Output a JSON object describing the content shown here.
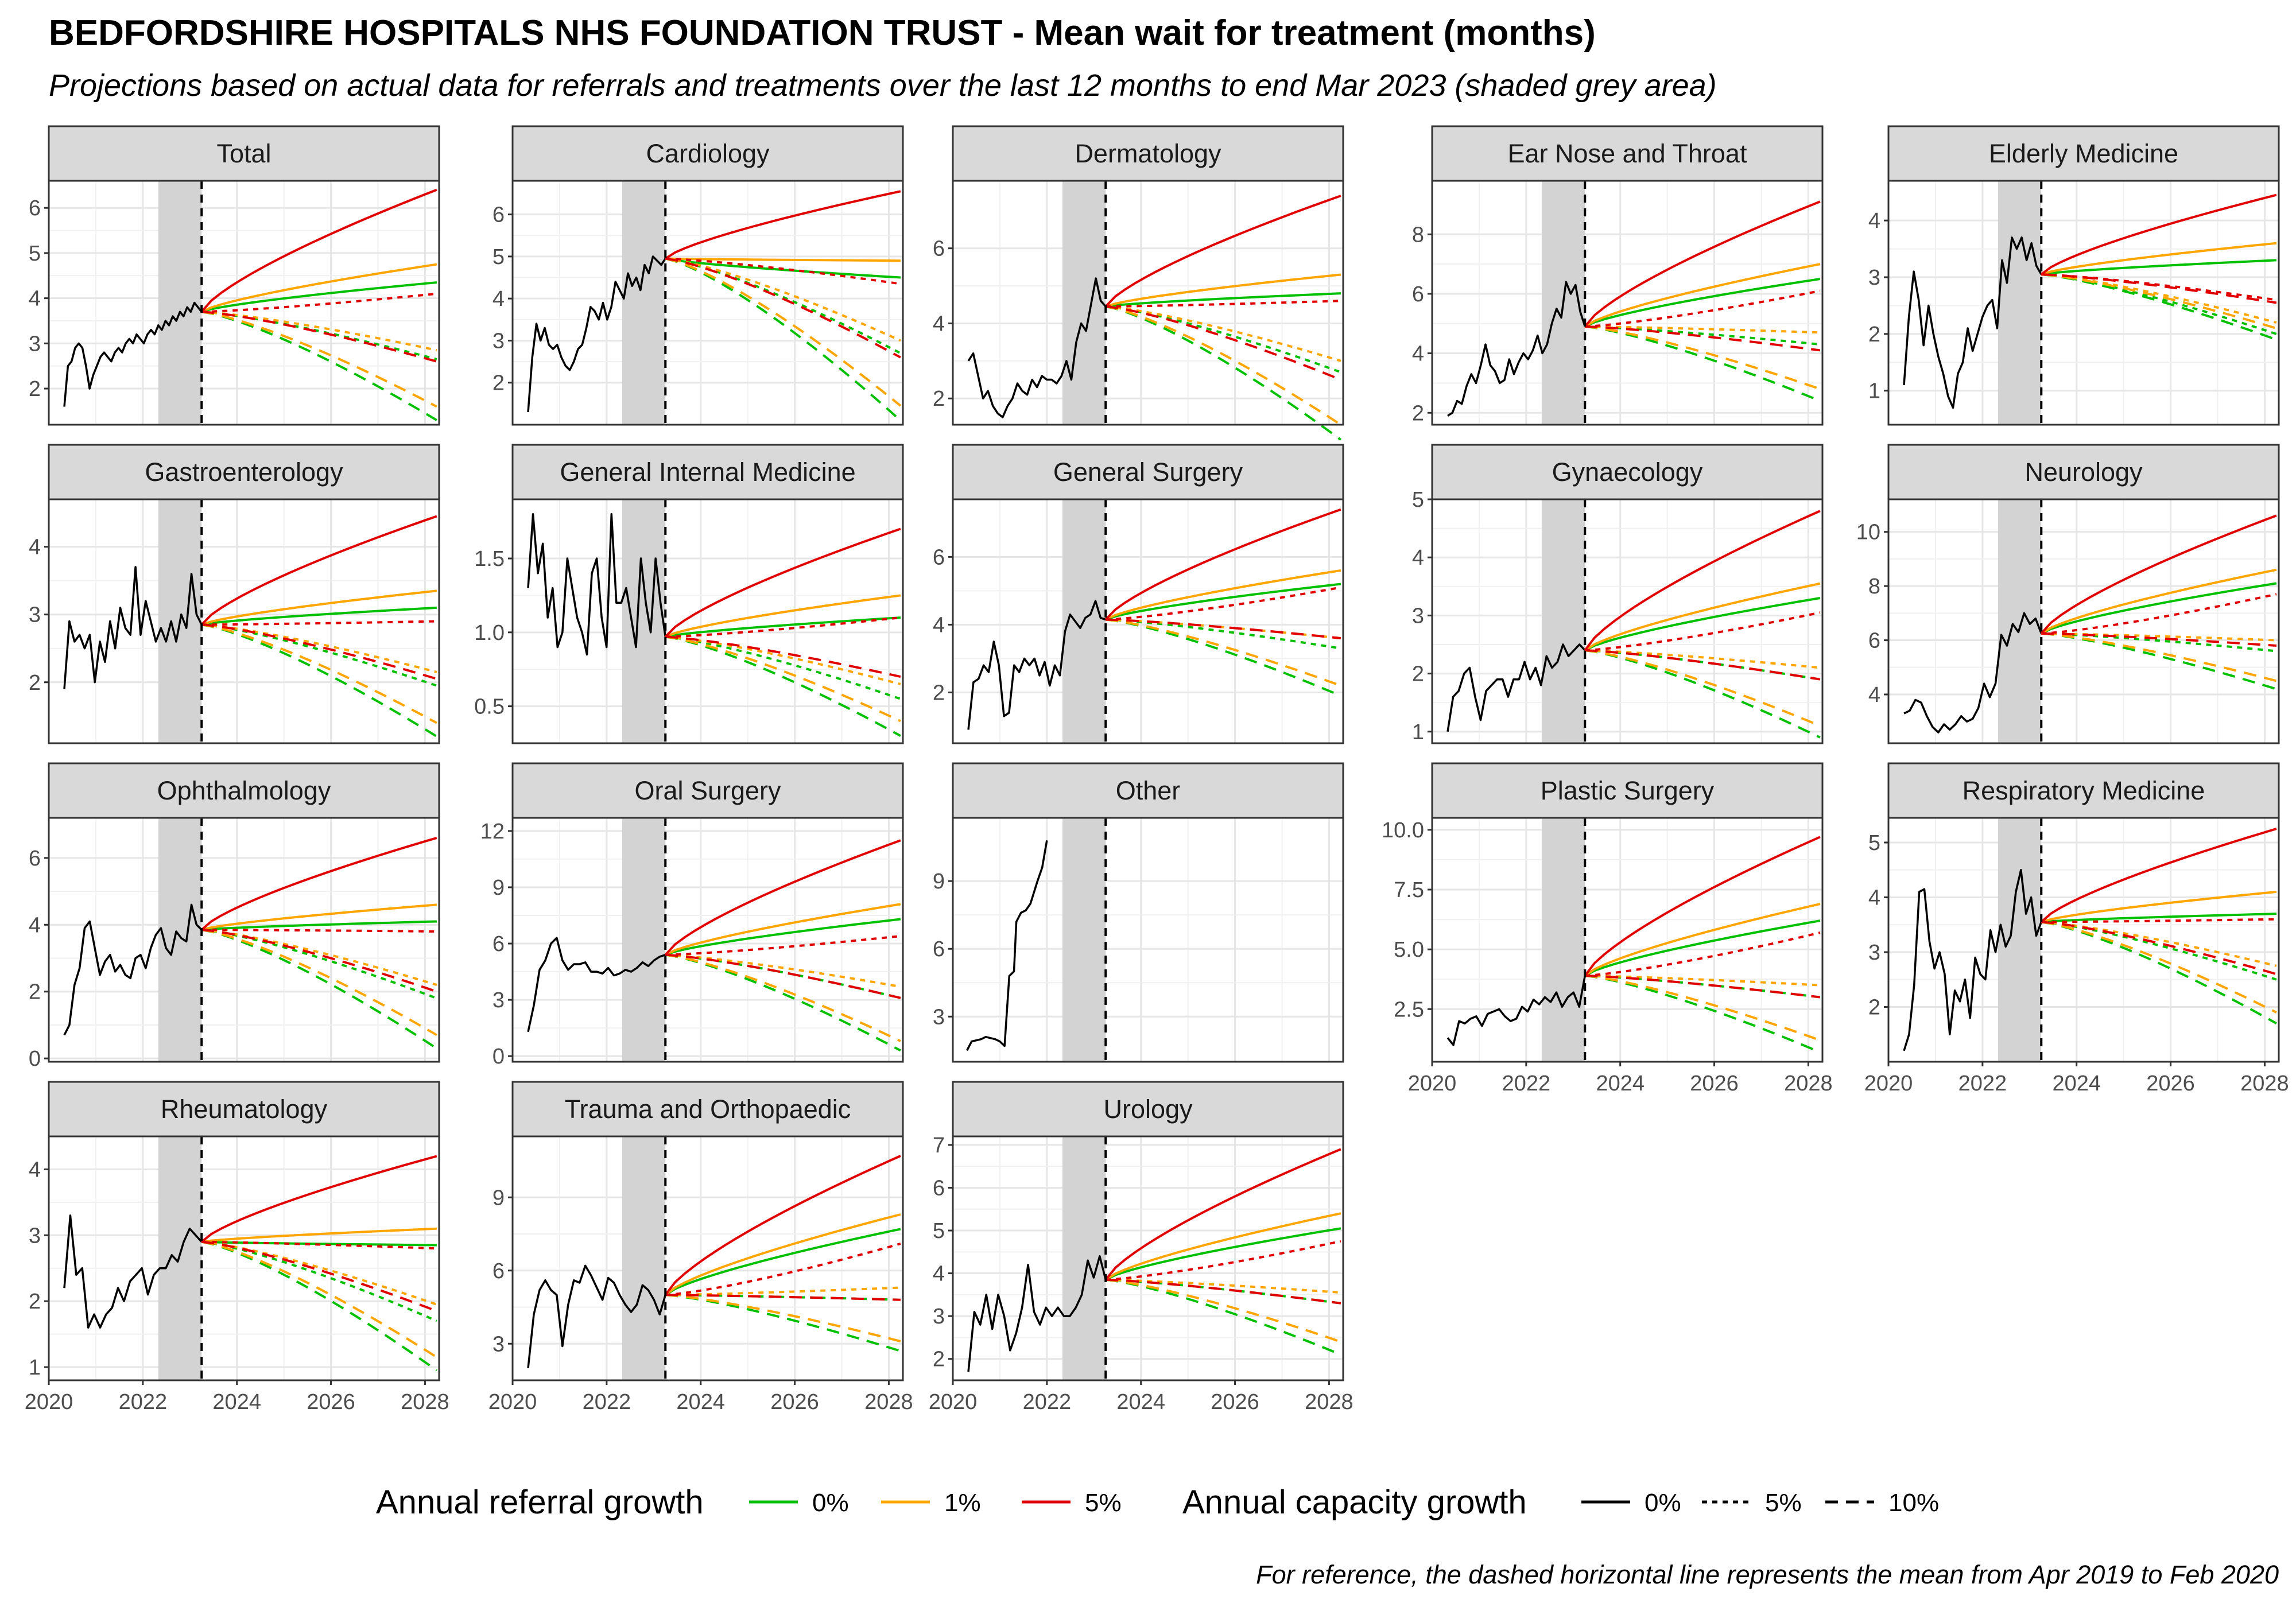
{
  "title": "BEDFORDSHIRE HOSPITALS NHS FOUNDATION TRUST - Mean wait for treatment (months)",
  "subtitle": "Projections based on actual data for referrals and treatments over the last 12 months to end Mar 2023 (shaded grey area)",
  "caption": "For reference, the dashed horizontal line represents the mean from Apr 2019 to Feb 2020",
  "legend": {
    "referral": {
      "title": "Annual referral growth",
      "items": [
        {
          "label": "0%",
          "color": "#00c000"
        },
        {
          "label": "1%",
          "color": "#ffa500"
        },
        {
          "label": "5%",
          "color": "#e00000"
        }
      ]
    },
    "capacity": {
      "title": "Annual capacity growth",
      "items": [
        {
          "label": "0%",
          "linetype": "solid"
        },
        {
          "label": "5%",
          "linetype": "dotted"
        },
        {
          "label": "10%",
          "linetype": "dashed"
        }
      ]
    }
  },
  "chart_data": {
    "type": "line",
    "facet_layout": "5 columns, free y-scales, shared x-axis",
    "x_axis": {
      "range": [
        2020.0,
        2028.3
      ],
      "ticks": [
        2020,
        2022,
        2024,
        2026,
        2028
      ]
    },
    "shaded_period": [
      2022.33,
      2023.25
    ],
    "projection_start": 2023.25,
    "projection_end": 2028.25,
    "series_key": "projections keyed [referral growth][capacity growth] = end value at 2028.25",
    "panels": [
      {
        "name": "Total",
        "ylim": [
          1.2,
          6.6
        ],
        "yticks": [
          2,
          3,
          4,
          5,
          6
        ],
        "start": 3.7,
        "hist": [
          1.6,
          2.5,
          2.6,
          2.9,
          3.0,
          2.9,
          2.5,
          2.0,
          2.3,
          2.5,
          2.7,
          2.8,
          2.7,
          2.6,
          2.8,
          2.9,
          2.8,
          3.0,
          3.1,
          3.0,
          3.2,
          3.1,
          3.0,
          3.2,
          3.3,
          3.2,
          3.4,
          3.3,
          3.5,
          3.4,
          3.6,
          3.5,
          3.7,
          3.6,
          3.8,
          3.7,
          3.9,
          3.8,
          3.7
        ],
        "proj": {
          "0%": [
            4.35,
            2.65,
            1.3
          ],
          "1%": [
            4.75,
            2.85,
            1.6
          ],
          "5%": [
            6.4,
            4.1,
            2.6
          ]
        }
      },
      {
        "name": "Cardiology",
        "ylim": [
          1.0,
          6.8
        ],
        "yticks": [
          2,
          3,
          4,
          5,
          6
        ],
        "start": 4.95,
        "hist": [
          1.3,
          2.6,
          3.4,
          3.0,
          3.3,
          2.9,
          2.8,
          2.9,
          2.6,
          2.4,
          2.3,
          2.5,
          2.8,
          2.9,
          3.3,
          3.8,
          3.7,
          3.5,
          3.9,
          3.5,
          3.8,
          4.4,
          4.2,
          4.0,
          4.6,
          4.3,
          4.5,
          4.2,
          4.8,
          4.6,
          5.0,
          4.9,
          4.8,
          4.95
        ],
        "proj": {
          "0%": [
            4.5,
            2.7,
            1.1
          ],
          "1%": [
            4.9,
            3.0,
            1.45
          ],
          "5%": [
            6.55,
            4.35,
            2.6
          ]
        }
      },
      {
        "name": "Dermatology",
        "ylim": [
          1.3,
          7.8
        ],
        "yticks": [
          2,
          4,
          6
        ],
        "start": 4.45,
        "hist": [
          3.0,
          3.2,
          2.6,
          2.0,
          2.2,
          1.8,
          1.6,
          1.5,
          1.8,
          2.0,
          2.4,
          2.2,
          2.1,
          2.5,
          2.3,
          2.6,
          2.5,
          2.5,
          2.4,
          2.6,
          3.0,
          2.5,
          3.5,
          4.0,
          3.8,
          4.5,
          5.2,
          4.6,
          4.45
        ],
        "proj": {
          "0%": [
            4.8,
            2.7,
            0.9
          ],
          "1%": [
            5.3,
            3.0,
            1.3
          ],
          "5%": [
            7.4,
            4.6,
            2.5
          ]
        }
      },
      {
        "name": "Ear Nose and Throat",
        "ylim": [
          1.6,
          9.8
        ],
        "yticks": [
          2,
          4,
          6,
          8
        ],
        "start": 4.9,
        "hist": [
          1.9,
          2.0,
          2.4,
          2.3,
          2.9,
          3.3,
          3.0,
          3.6,
          4.3,
          3.6,
          3.4,
          3.0,
          3.1,
          3.8,
          3.3,
          3.7,
          4.0,
          3.8,
          4.1,
          4.6,
          4.0,
          4.3,
          5.0,
          5.5,
          5.2,
          6.4,
          6.0,
          6.3,
          5.4,
          4.9
        ],
        "proj": {
          "0%": [
            6.5,
            4.3,
            2.4
          ],
          "1%": [
            7.0,
            4.7,
            2.8
          ],
          "5%": [
            9.1,
            6.1,
            4.1
          ]
        }
      },
      {
        "name": "Elderly Medicine",
        "ylim": [
          0.4,
          4.7
        ],
        "yticks": [
          1,
          2,
          3,
          4
        ],
        "start": 3.05,
        "hist": [
          1.1,
          2.3,
          3.1,
          2.6,
          1.8,
          2.5,
          2.0,
          1.6,
          1.3,
          0.9,
          0.7,
          1.3,
          1.5,
          2.1,
          1.7,
          2.0,
          2.3,
          2.5,
          2.6,
          2.1,
          3.3,
          2.9,
          3.7,
          3.5,
          3.7,
          3.3,
          3.6,
          3.2,
          3.05
        ],
        "proj": {
          "0%": [
            3.3,
            2.0,
            1.9
          ],
          "1%": [
            3.6,
            2.2,
            2.1
          ],
          "5%": [
            4.45,
            2.6,
            2.55
          ]
        }
      },
      {
        "name": "Gastroenterology",
        "ylim": [
          1.1,
          4.7
        ],
        "yticks": [
          2,
          3,
          4
        ],
        "start": 2.85,
        "hist": [
          1.9,
          2.9,
          2.6,
          2.7,
          2.5,
          2.7,
          2.0,
          2.6,
          2.3,
          2.9,
          2.5,
          3.1,
          2.8,
          2.7,
          3.7,
          2.7,
          3.2,
          2.9,
          2.6,
          2.8,
          2.6,
          2.9,
          2.6,
          3.0,
          2.8,
          3.6,
          3.0,
          2.85
        ],
        "proj": {
          "0%": [
            3.1,
            1.95,
            1.2
          ],
          "1%": [
            3.35,
            2.15,
            1.4
          ],
          "5%": [
            4.45,
            2.9,
            2.05
          ]
        }
      },
      {
        "name": "General Internal Medicine",
        "ylim": [
          0.25,
          1.9
        ],
        "yticks": [
          0.5,
          1.0,
          1.5
        ],
        "start": 0.97,
        "hist": [
          1.3,
          1.8,
          1.4,
          1.6,
          1.1,
          1.3,
          0.9,
          1.0,
          1.5,
          1.3,
          1.1,
          1.0,
          0.85,
          1.4,
          1.5,
          1.1,
          0.9,
          1.8,
          1.2,
          1.2,
          1.3,
          1.1,
          0.9,
          1.5,
          1.2,
          1.0,
          1.5,
          1.2,
          0.97
        ],
        "proj": {
          "0%": [
            1.1,
            0.55,
            0.3
          ],
          "1%": [
            1.25,
            0.65,
            0.4
          ],
          "5%": [
            1.7,
            1.1,
            0.7
          ]
        }
      },
      {
        "name": "General Surgery",
        "ylim": [
          0.5,
          7.7
        ],
        "yticks": [
          2,
          4,
          6
        ],
        "start": 4.15,
        "hist": [
          0.9,
          2.3,
          2.4,
          2.8,
          2.6,
          3.5,
          2.8,
          1.3,
          1.4,
          2.8,
          2.6,
          3.0,
          2.8,
          3.0,
          2.5,
          2.9,
          2.2,
          2.8,
          2.5,
          3.8,
          4.3,
          4.1,
          3.9,
          4.2,
          4.3,
          4.7,
          4.2,
          4.15
        ],
        "proj": {
          "0%": [
            5.2,
            3.3,
            1.9
          ],
          "1%": [
            5.6,
            3.6,
            2.2
          ],
          "5%": [
            7.4,
            5.1,
            3.6
          ]
        }
      },
      {
        "name": "Gynaecology",
        "ylim": [
          0.8,
          5.0
        ],
        "yticks": [
          1,
          2,
          3,
          4,
          5
        ],
        "start": 2.4,
        "hist": [
          1.0,
          1.6,
          1.7,
          2.0,
          2.1,
          1.6,
          1.2,
          1.7,
          1.8,
          1.9,
          1.9,
          1.6,
          1.9,
          1.9,
          2.2,
          1.9,
          2.1,
          1.8,
          2.3,
          2.1,
          2.2,
          2.5,
          2.3,
          2.4,
          2.5,
          2.4
        ],
        "proj": {
          "0%": [
            3.3,
            1.9,
            0.9
          ],
          "1%": [
            3.55,
            2.1,
            1.1
          ],
          "5%": [
            4.8,
            3.05,
            1.9
          ]
        }
      },
      {
        "name": "Neurology",
        "ylim": [
          2.2,
          11.2
        ],
        "yticks": [
          4,
          6,
          8,
          10
        ],
        "start": 6.25,
        "hist": [
          3.3,
          3.4,
          3.8,
          3.7,
          3.2,
          2.8,
          2.6,
          2.9,
          2.7,
          2.9,
          3.2,
          3.0,
          3.1,
          3.5,
          4.4,
          3.9,
          4.4,
          6.2,
          5.8,
          6.6,
          6.3,
          7.0,
          6.6,
          6.8,
          6.25
        ],
        "proj": {
          "0%": [
            8.1,
            5.6,
            4.2
          ],
          "1%": [
            8.6,
            6.0,
            4.5
          ],
          "5%": [
            10.6,
            7.7,
            5.8
          ]
        }
      },
      {
        "name": "Ophthalmology",
        "ylim": [
          -0.1,
          7.2
        ],
        "yticks": [
          0,
          2,
          4,
          6
        ],
        "start": 3.85,
        "hist": [
          0.7,
          1.0,
          2.2,
          2.7,
          3.9,
          4.1,
          3.3,
          2.5,
          2.9,
          3.1,
          2.6,
          2.8,
          2.5,
          2.4,
          3.0,
          3.1,
          2.7,
          3.3,
          3.7,
          3.9,
          3.3,
          3.1,
          3.8,
          3.6,
          3.5,
          4.6,
          4.0,
          3.85
        ],
        "proj": {
          "0%": [
            4.1,
            1.8,
            0.3
          ],
          "1%": [
            4.6,
            2.2,
            0.7
          ],
          "5%": [
            6.6,
            3.8,
            2.0
          ]
        }
      },
      {
        "name": "Oral Surgery",
        "ylim": [
          -0.3,
          12.7
        ],
        "yticks": [
          0,
          3,
          6,
          9,
          12
        ],
        "start": 5.4,
        "hist": [
          1.3,
          2.7,
          4.6,
          5.1,
          6.0,
          6.3,
          5.1,
          4.6,
          4.9,
          4.9,
          5.0,
          4.5,
          4.5,
          4.4,
          4.7,
          4.3,
          4.4,
          4.6,
          4.5,
          4.7,
          5.0,
          4.8,
          5.1,
          5.3,
          5.4
        ],
        "proj": {
          "0%": [
            7.3,
            3.1,
            0.3
          ],
          "1%": [
            8.1,
            3.7,
            0.8
          ],
          "5%": [
            11.5,
            6.4,
            3.1
          ]
        }
      },
      {
        "name": "Other",
        "ylim": [
          1.0,
          11.8
        ],
        "yticks": [
          3,
          6,
          9
        ],
        "start": null,
        "hist_points": [
          [
            2020.3,
            1.5
          ],
          [
            2020.4,
            1.9
          ],
          [
            2020.6,
            2.0
          ],
          [
            2020.7,
            2.1
          ],
          [
            2020.9,
            2.0
          ],
          [
            2021.0,
            1.9
          ],
          [
            2021.1,
            1.7
          ],
          [
            2021.2,
            4.8
          ],
          [
            2021.3,
            5.0
          ],
          [
            2021.35,
            7.2
          ],
          [
            2021.45,
            7.6
          ],
          [
            2021.55,
            7.7
          ],
          [
            2021.65,
            8.0
          ],
          [
            2021.8,
            9.0
          ],
          [
            2021.9,
            9.6
          ],
          [
            2022.0,
            10.8
          ]
        ],
        "hist": [],
        "proj": null
      },
      {
        "name": "Plastic Surgery",
        "ylim": [
          0.3,
          10.5
        ],
        "yticks": [
          2.5,
          5.0,
          7.5,
          10.0
        ],
        "start": 3.9,
        "hist": [
          1.3,
          1.0,
          2.0,
          1.9,
          2.1,
          2.2,
          1.8,
          2.3,
          2.4,
          2.5,
          2.2,
          2.0,
          2.1,
          2.6,
          2.4,
          2.9,
          2.7,
          3.0,
          2.8,
          3.2,
          2.6,
          3.0,
          3.2,
          2.6,
          3.9
        ],
        "proj": {
          "0%": [
            6.2,
            3.0,
            0.7
          ],
          "1%": [
            6.9,
            3.5,
            1.2
          ],
          "5%": [
            9.7,
            5.7,
            3.0
          ]
        }
      },
      {
        "name": "Respiratory Medicine",
        "ylim": [
          1.0,
          5.45
        ],
        "yticks": [
          2,
          3,
          4,
          5
        ],
        "start": 3.55,
        "hist": [
          1.2,
          1.5,
          2.4,
          4.1,
          4.15,
          3.2,
          2.7,
          3.0,
          2.6,
          1.5,
          2.3,
          2.1,
          2.5,
          1.8,
          2.9,
          2.6,
          2.5,
          3.4,
          3.0,
          3.5,
          3.1,
          3.3,
          4.1,
          4.5,
          3.7,
          4.0,
          3.3,
          3.55
        ],
        "proj": {
          "0%": [
            3.7,
            2.5,
            1.7
          ],
          "1%": [
            4.1,
            2.75,
            1.9
          ],
          "5%": [
            5.25,
            3.6,
            2.6
          ]
        }
      },
      {
        "name": "Rheumatology",
        "ylim": [
          0.8,
          4.5
        ],
        "yticks": [
          1,
          2,
          3,
          4
        ],
        "start": 2.9,
        "hist": [
          2.2,
          3.3,
          2.4,
          2.5,
          1.6,
          1.8,
          1.6,
          1.8,
          1.9,
          2.2,
          2.0,
          2.3,
          2.4,
          2.5,
          2.1,
          2.4,
          2.5,
          2.5,
          2.7,
          2.6,
          2.9,
          3.1,
          3.0,
          2.9
        ],
        "proj": {
          "0%": [
            2.85,
            1.7,
            0.95
          ],
          "1%": [
            3.1,
            1.95,
            1.15
          ],
          "5%": [
            4.2,
            2.8,
            1.85
          ]
        }
      },
      {
        "name": "Trauma and Orthopaedic",
        "ylim": [
          1.5,
          11.5
        ],
        "yticks": [
          3,
          6,
          9
        ],
        "start": 5.0,
        "hist": [
          2.0,
          4.2,
          5.2,
          5.6,
          5.2,
          5.0,
          2.9,
          4.6,
          5.6,
          5.5,
          6.2,
          5.8,
          5.3,
          4.8,
          5.7,
          5.5,
          5.0,
          4.6,
          4.3,
          4.6,
          5.4,
          5.2,
          4.8,
          4.2,
          5.0
        ],
        "proj": {
          "0%": [
            7.7,
            4.8,
            2.7
          ],
          "1%": [
            8.3,
            5.3,
            3.1
          ],
          "5%": [
            10.7,
            7.1,
            4.8
          ]
        }
      },
      {
        "name": "Urology",
        "ylim": [
          1.5,
          7.2
        ],
        "yticks": [
          2,
          3,
          4,
          5,
          6,
          7
        ],
        "start": 3.85,
        "hist": [
          1.7,
          3.1,
          2.8,
          3.5,
          2.7,
          3.5,
          3.0,
          2.2,
          2.6,
          3.2,
          4.2,
          3.1,
          2.8,
          3.2,
          3.0,
          3.2,
          3.0,
          3.0,
          3.2,
          3.5,
          4.3,
          3.9,
          4.4,
          3.85
        ],
        "proj": {
          "0%": [
            5.05,
            3.3,
            2.1
          ],
          "1%": [
            5.4,
            3.55,
            2.4
          ],
          "5%": [
            6.9,
            4.75,
            3.3
          ]
        }
      }
    ]
  }
}
